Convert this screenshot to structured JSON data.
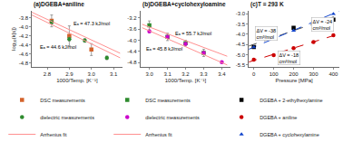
{
  "chart_data": [
    {
      "type": "scatter",
      "title": "(a)DGEBA+aniline",
      "xlabel": "1000/Temp. [K⁻¹]",
      "ylabel": "log₁₀(k[s])",
      "xlim": [
        2.73,
        3.14
      ],
      "ylim": [
        -4.88,
        -3.65
      ],
      "xticks": [
        2.8,
        2.9,
        {
          "value": 3.0,
          "label": "3.0"
        },
        3.1
      ],
      "yticks": [
        -4.8,
        -4.6,
        -4.4,
        -4.2,
        {
          "value": -4.0,
          "label": "-4.0"
        },
        -3.8
      ],
      "grid": false,
      "legend": "bottom",
      "series": [
        {
          "name": "DSC measurements",
          "type": "scatter",
          "marker": "square",
          "color": "#d4622a",
          "x": [
            2.82,
            2.9,
            3.0
          ],
          "values": [
            -3.87,
            -4.2,
            -4.5
          ],
          "errors": [
            0.13,
            0.22,
            0.13
          ]
        },
        {
          "name": "dielectric measurements",
          "type": "scatter",
          "marker": "circle",
          "color": "#2e8b2e",
          "x": [
            2.82,
            2.9,
            2.97,
            3.07
          ],
          "values": [
            -3.9,
            -4.27,
            -4.3,
            -4.68
          ],
          "errors": [
            0.04,
            0.04,
            0.04,
            0.04
          ]
        },
        {
          "name": "Arrhenius fit",
          "type": "line",
          "line_style": "solid",
          "color": "#ff9090",
          "x": [
            2.73,
            3.13,
            null,
            2.73,
            3.13
          ],
          "values": [
            -3.68,
            -4.58,
            null,
            -3.74,
            -4.68
          ]
        }
      ],
      "annotations": [
        {
          "text": "Eₐ = 47.3 kJ/mol",
          "x": 2.91,
          "y": -4.02
        },
        {
          "text": "Eₐ = 44.6 kJ/mol",
          "x": 2.76,
          "y": -4.54
        }
      ]
    },
    {
      "type": "scatter",
      "title": "(b)DGEBA+cyclohexyloamine",
      "xlabel": "1000/Temp. [K⁻¹]",
      "xlim": [
        2.95,
        3.45
      ],
      "ylim": [
        -4.95,
        -2.95
      ],
      "xticks": [
        {
          "value": 3.0,
          "label": "3.0"
        },
        3.1,
        3.2,
        3.3,
        3.4
      ],
      "yticks": [
        -4.8,
        -4.4,
        {
          "value": -4.0,
          "label": "-4.0"
        },
        -3.6,
        -3.2
      ],
      "grid": false,
      "legend": "bottom",
      "series": [
        {
          "name": "DSC measurements",
          "type": "scatter",
          "marker": "square",
          "color": "#2e8b2e",
          "x": [
            3.0,
            3.1,
            3.2,
            3.3
          ],
          "values": [
            -3.47,
            -3.88,
            -4.1,
            -4.45
          ],
          "errors": [
            0.16,
            0.13,
            0.1,
            0.13
          ]
        },
        {
          "name": "dielectric measurements",
          "type": "scatter",
          "marker": "circle",
          "color": "#cc00cc",
          "x": [
            3.0,
            3.1,
            3.2,
            3.3,
            3.4
          ],
          "values": [
            -3.68,
            -3.88,
            -4.13,
            -4.45,
            -4.78
          ],
          "errors": [
            0.04,
            0.04,
            0.04,
            0.04,
            0.04
          ]
        },
        {
          "name": "Arrhenius fit",
          "type": "line",
          "line_style": "solid",
          "color": "#ff9090",
          "x": [
            2.96,
            3.43,
            null,
            2.96,
            3.43
          ],
          "values": [
            -3.43,
            -4.57,
            null,
            -3.55,
            -4.88
          ]
        }
      ],
      "annotations": [
        {
          "text": "Eₐ = 55.7 kJ/mol",
          "x": 3.13,
          "y": -3.93
        },
        {
          "text": "Eₐ = 45.8 kJ/mol",
          "x": 2.97,
          "y": -4.48
        }
      ]
    },
    {
      "type": "scatter",
      "title": "(c)T = 293 K",
      "xlabel": "Pressure [MPa]",
      "xlim": [
        -25,
        430
      ],
      "ylim": [
        -5.6,
        -2.85
      ],
      "xticks": [
        0,
        100,
        200,
        300,
        400
      ],
      "yticks": [
        -5.5,
        {
          "value": -5.0,
          "label": "-5.0"
        },
        -4.5,
        {
          "value": -4.0,
          "label": "-4.0"
        },
        -3.5,
        {
          "value": -3.0,
          "label": "-3.0"
        }
      ],
      "grid": false,
      "legend": "bottom",
      "series": [
        {
          "type": "line",
          "line_style": "dashed",
          "color": "#555555",
          "x": [
            -25,
            430
          ],
          "values": [
            -4.576,
            -3.0472
          ]
        },
        {
          "type": "line",
          "line_style": "dashed",
          "color": "#cc0000",
          "x": [
            -25,
            430
          ],
          "values": [
            -5.36,
            -3.9768
          ]
        },
        {
          "type": "line",
          "line_style": "dashed",
          "color": "#1144cc",
          "x": [
            -25,
            430
          ],
          "values": [
            -4.73325,
            -2.8541
          ]
        },
        {
          "name": "DGEBA + 2-ethylhexylamine",
          "type": "scatter",
          "marker": "square",
          "color": "#000000",
          "x": [
            0,
            100,
            200,
            300,
            400
          ],
          "values": [
            -4.62,
            -4.1,
            -3.68,
            -3.42,
            -3.28
          ]
        },
        {
          "name": "DGEBA + aniline",
          "type": "scatter",
          "marker": "circle",
          "color": "#cc0000",
          "x": [
            0,
            100,
            200,
            300,
            400
          ],
          "values": [
            -5.25,
            -5.02,
            -4.68,
            -4.38,
            -4.05
          ]
        },
        {
          "name": "DGEBA + cyclohexylamine",
          "type": "scatter",
          "marker": "triangle",
          "color": "#1144cc",
          "x": [
            0,
            100,
            200,
            300,
            400
          ],
          "values": [
            -4.63,
            -4.22,
            -3.82,
            -3.35,
            -3.0
          ]
        }
      ],
      "annotations": [
        {
          "text": "ΔV = -38\ncm³/mol",
          "x": 5,
          "y": -3.95
        },
        {
          "text": "ΔV = -24\ncm³/mol",
          "x": 290,
          "y": -3.5
        },
        {
          "text": "ΔV = -18\ncm³/mol",
          "x": 120,
          "y": -5.15
        }
      ]
    }
  ]
}
